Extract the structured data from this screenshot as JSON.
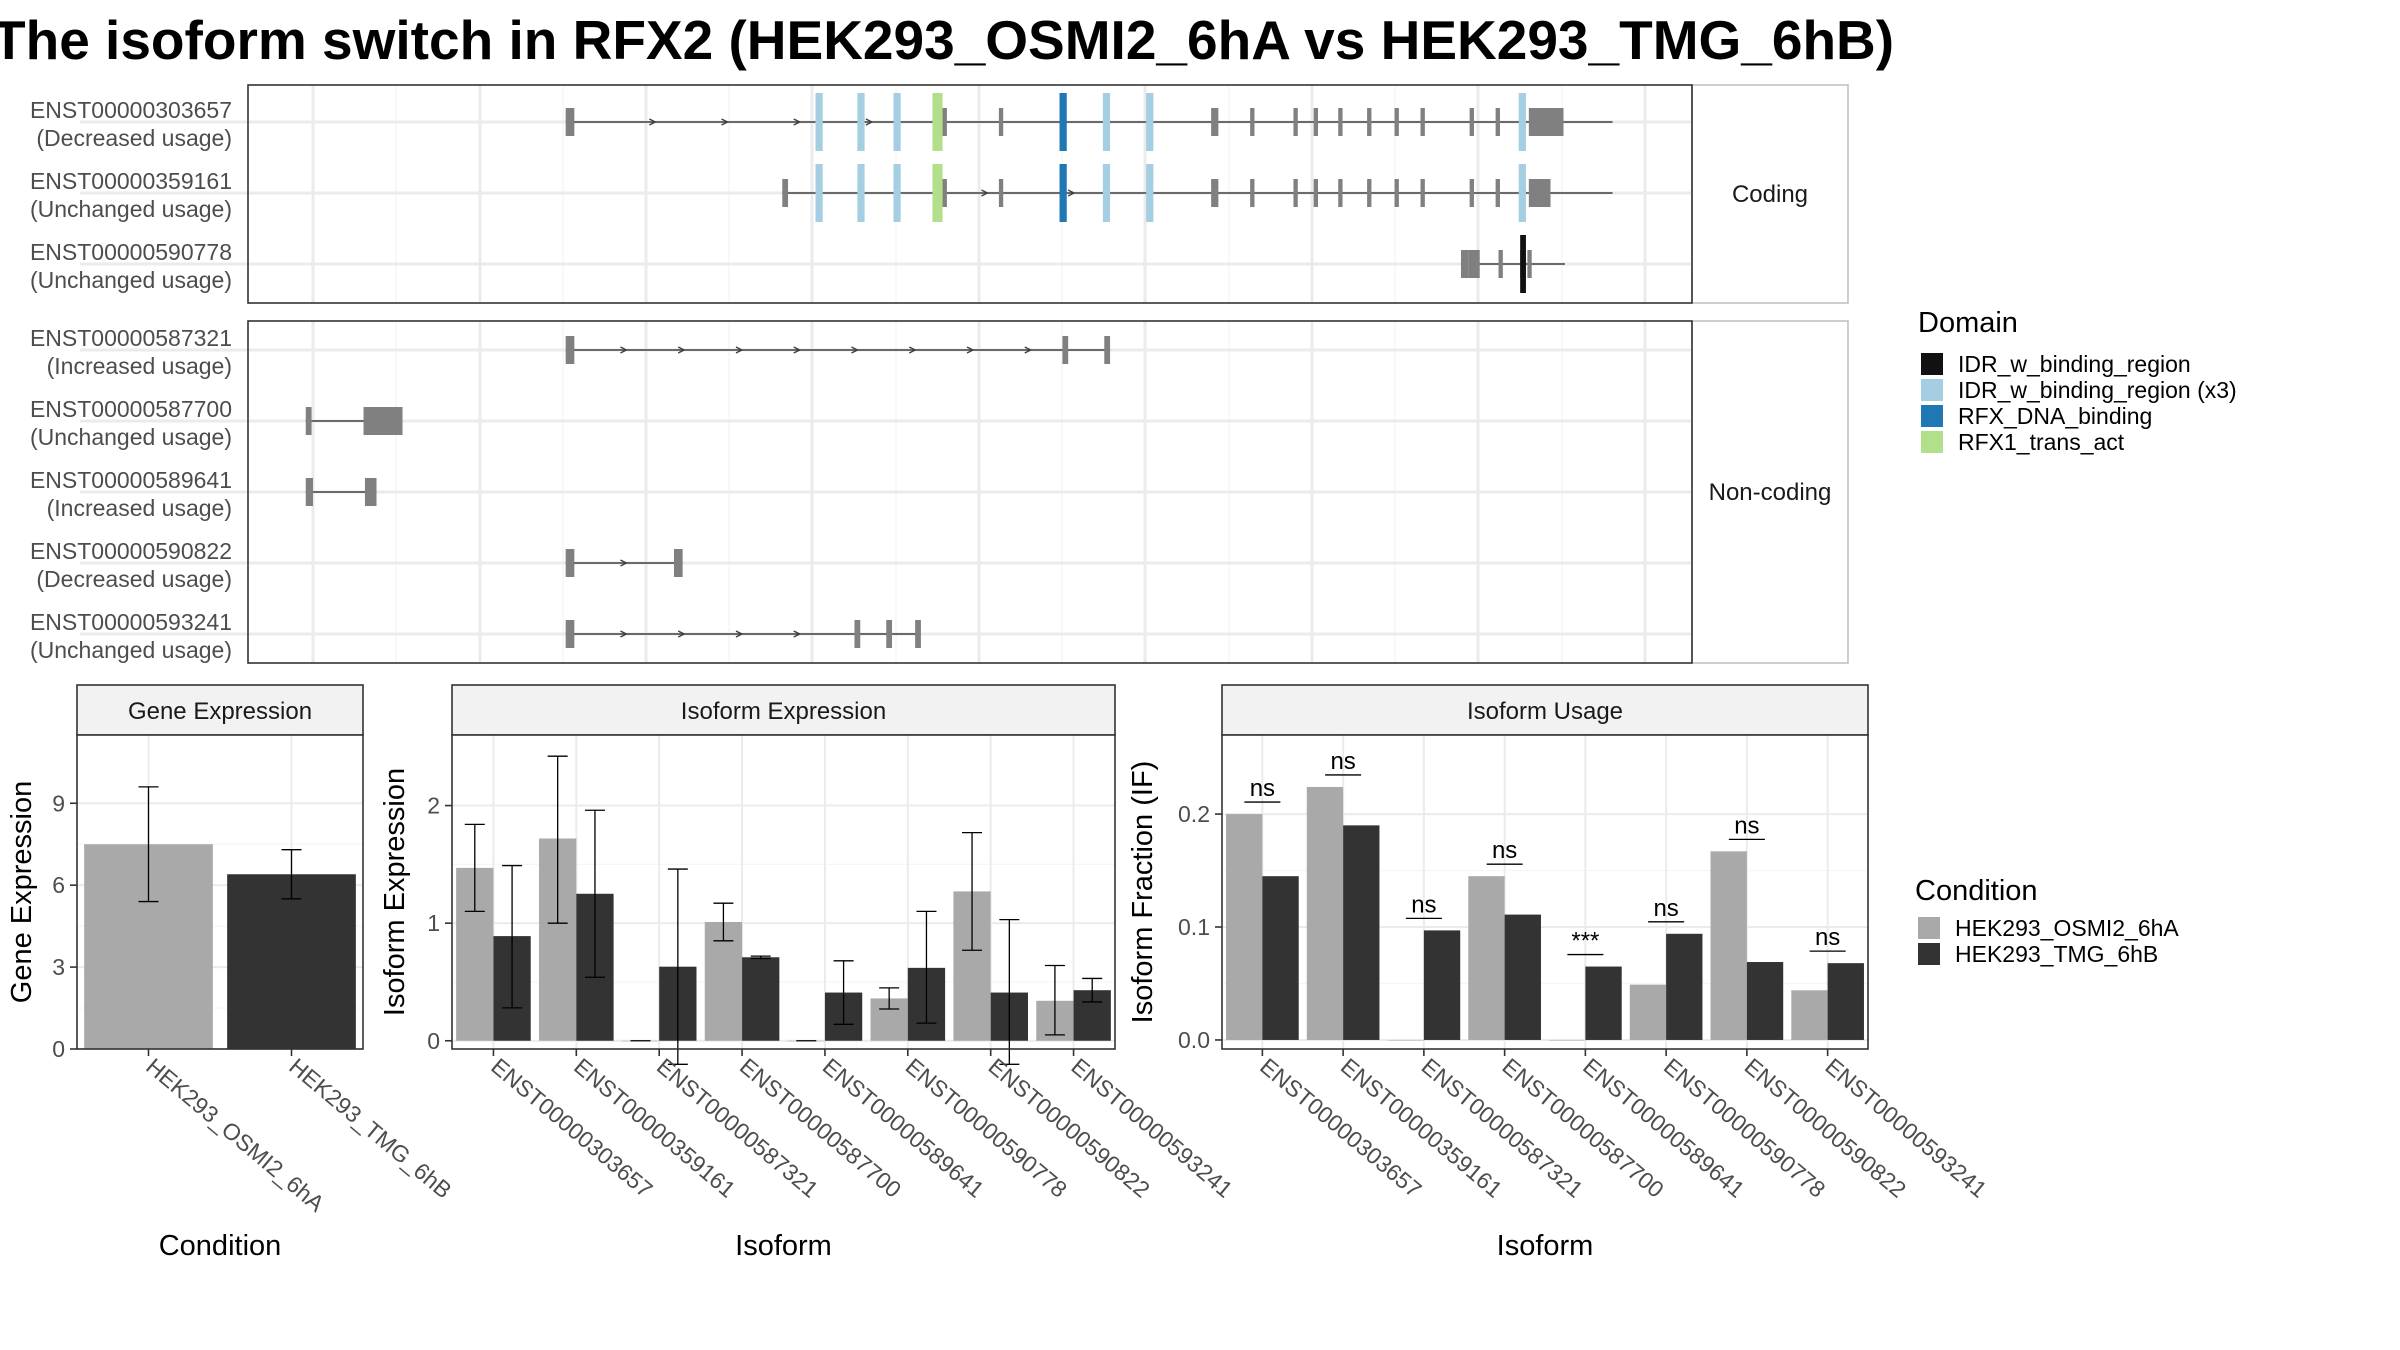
{
  "title": "The isoform switch in RFX2 (HEK293_OSMI2_6hA vs HEK293_TMG_6hB)",
  "colors": {
    "exon": "#808080",
    "intron": "#404040",
    "strip_bg": "#f2f2f2",
    "grid": "#ebebeb",
    "cond_a": "#a9a9a9",
    "cond_b": "#333333"
  },
  "chart_data": [
    {
      "type": "gene-structure",
      "facets": [
        "Coding",
        "Non-coding"
      ],
      "x_range": [
        0,
        100
      ],
      "domain_legend": {
        "title": "Domain",
        "items": [
          {
            "label": "IDR_w_binding_region",
            "color": "#111111"
          },
          {
            "label": "IDR_w_binding_region (x3)",
            "color": "#a6cee3"
          },
          {
            "label": "RFX_DNA_binding",
            "color": "#1f78b4"
          },
          {
            "label": "RFX1_trans_act",
            "color": "#b2df8a"
          }
        ]
      },
      "isoforms": [
        {
          "id": "ENST00000303657",
          "usage": "(Decreased usage)",
          "facet": "Coding",
          "start": 22.0,
          "end": 94.5,
          "arrows": [
            28,
            33,
            38,
            43
          ],
          "exons": [
            [
              22.0,
              22.6,
              "thin"
            ],
            [
              39.4,
              39.7,
              "thick"
            ],
            [
              42.3,
              42.6,
              "thick"
            ],
            [
              44.8,
              45.1,
              "thick"
            ],
            [
              47.6,
              48.4,
              "thick"
            ],
            [
              52.0,
              52.3,
              "thick"
            ],
            [
              62.3,
              62.6,
              "thick"
            ],
            [
              66.7,
              67.2,
              "thick"
            ],
            [
              69.4,
              69.7,
              "thick"
            ],
            [
              72.4,
              72.7,
              "thick"
            ],
            [
              73.8,
              74.1,
              "thick"
            ],
            [
              75.5,
              75.8,
              "thick"
            ],
            [
              77.5,
              77.8,
              "thick"
            ],
            [
              79.4,
              79.7,
              "thick"
            ],
            [
              81.2,
              81.5,
              "thick"
            ],
            [
              84.6,
              84.9,
              "thick"
            ],
            [
              86.4,
              86.7,
              "thick"
            ],
            [
              88.1,
              88.4,
              "thick"
            ],
            [
              88.7,
              91.1,
              "utr"
            ]
          ],
          "domains": [
            [
              39.3,
              39.8,
              "#a6cee3"
            ],
            [
              42.2,
              42.7,
              "#a6cee3"
            ],
            [
              44.7,
              45.2,
              "#a6cee3"
            ],
            [
              47.4,
              48.1,
              "#b2df8a"
            ],
            [
              56.2,
              56.7,
              "#1f78b4"
            ],
            [
              59.2,
              59.7,
              "#a6cee3"
            ],
            [
              62.2,
              62.7,
              "#a6cee3"
            ],
            [
              88.0,
              88.5,
              "#a6cee3"
            ]
          ]
        },
        {
          "id": "ENST00000359161",
          "usage": "(Unchanged usage)",
          "facet": "Coding",
          "start": 37.0,
          "end": 94.5,
          "arrows": [
            51,
            57
          ],
          "exons": [
            [
              37.0,
              37.4,
              "thin"
            ],
            [
              39.4,
              39.7,
              "thick"
            ],
            [
              42.3,
              42.6,
              "thick"
            ],
            [
              44.8,
              45.1,
              "thick"
            ],
            [
              47.6,
              48.4,
              "thick"
            ],
            [
              52.0,
              52.3,
              "thick"
            ],
            [
              62.3,
              62.6,
              "thick"
            ],
            [
              66.7,
              67.2,
              "thick"
            ],
            [
              69.4,
              69.7,
              "thick"
            ],
            [
              72.4,
              72.7,
              "thick"
            ],
            [
              73.8,
              74.1,
              "thick"
            ],
            [
              75.5,
              75.8,
              "thick"
            ],
            [
              77.5,
              77.8,
              "thick"
            ],
            [
              79.4,
              79.7,
              "thick"
            ],
            [
              81.2,
              81.5,
              "thick"
            ],
            [
              84.6,
              84.9,
              "thick"
            ],
            [
              86.4,
              86.7,
              "thick"
            ],
            [
              88.1,
              88.4,
              "thick"
            ],
            [
              88.7,
              90.2,
              "utr"
            ]
          ],
          "domains": [
            [
              39.3,
              39.8,
              "#a6cee3"
            ],
            [
              42.2,
              42.7,
              "#a6cee3"
            ],
            [
              44.7,
              45.2,
              "#a6cee3"
            ],
            [
              47.4,
              48.1,
              "#b2df8a"
            ],
            [
              56.2,
              56.7,
              "#1f78b4"
            ],
            [
              59.2,
              59.7,
              "#a6cee3"
            ],
            [
              62.2,
              62.7,
              "#a6cee3"
            ],
            [
              88.0,
              88.5,
              "#a6cee3"
            ]
          ]
        },
        {
          "id": "ENST00000590778",
          "usage": "(Unchanged usage)",
          "facet": "Coding",
          "start": 84.0,
          "end": 91.2,
          "arrows": [],
          "exons": [
            [
              84.0,
              84.5,
              "thin"
            ],
            [
              84.5,
              85.3,
              "thick"
            ],
            [
              86.6,
              86.9,
              "thick"
            ],
            [
              88.1,
              88.5,
              "thick"
            ],
            [
              88.6,
              88.9,
              "thick"
            ]
          ],
          "domains": [
            [
              88.1,
              88.5,
              "#111111"
            ]
          ]
        },
        {
          "id": "ENST00000587321",
          "usage": "(Increased usage)",
          "facet": "Non-coding",
          "start": 22.0,
          "end": 59.7,
          "arrows": [
            26,
            30,
            34,
            38,
            42,
            46,
            50,
            54
          ],
          "exons": [
            [
              22.0,
              22.6,
              "thick"
            ],
            [
              56.4,
              56.8,
              "thick"
            ],
            [
              59.3,
              59.7,
              "thick"
            ]
          ],
          "domains": []
        },
        {
          "id": "ENST00000587700",
          "usage": "(Unchanged usage)",
          "facet": "Non-coding",
          "start": 4.0,
          "end": 10.7,
          "arrows": [],
          "exons": [
            [
              4.0,
              4.4,
              "thick"
            ],
            [
              8.0,
              10.7,
              "thick"
            ]
          ],
          "domains": []
        },
        {
          "id": "ENST00000589641",
          "usage": "(Increased usage)",
          "facet": "Non-coding",
          "start": 4.0,
          "end": 8.9,
          "arrows": [],
          "exons": [
            [
              4.0,
              4.5,
              "thick"
            ],
            [
              8.1,
              8.9,
              "thick"
            ]
          ],
          "domains": []
        },
        {
          "id": "ENST00000590822",
          "usage": "(Decreased usage)",
          "facet": "Non-coding",
          "start": 22.0,
          "end": 30.1,
          "arrows": [
            26
          ],
          "exons": [
            [
              22.0,
              22.6,
              "thick"
            ],
            [
              29.5,
              30.1,
              "thick"
            ]
          ],
          "domains": []
        },
        {
          "id": "ENST00000593241",
          "usage": "(Unchanged usage)",
          "facet": "Non-coding",
          "start": 22.0,
          "end": 46.6,
          "arrows": [
            26,
            30,
            34,
            38
          ],
          "exons": [
            [
              22.0,
              22.6,
              "thick"
            ],
            [
              42.0,
              42.4,
              "thick"
            ],
            [
              44.2,
              44.6,
              "thick"
            ],
            [
              46.2,
              46.6,
              "thick"
            ]
          ],
          "domains": []
        }
      ]
    },
    {
      "type": "bar",
      "strip": "Gene Expression",
      "xlabel": "Condition",
      "ylabel": "Gene Expression",
      "ylim": [
        0,
        11.5
      ],
      "yticks": [
        "0",
        "3",
        "6",
        "9"
      ],
      "categories": [
        "HEK293_OSMI2_6hA",
        "HEK293_TMG_6hB"
      ],
      "values": [
        7.5,
        6.4
      ],
      "errors": [
        [
          5.4,
          9.6
        ],
        [
          5.5,
          7.3
        ]
      ]
    },
    {
      "type": "bar",
      "strip": "Isoform Expression",
      "xlabel": "Isoform",
      "ylabel": "Isoform Expression",
      "ylim": [
        -0.07,
        2.6
      ],
      "yticks": [
        "0",
        "1",
        "2"
      ],
      "categories": [
        "ENST00000303657",
        "ENST00000359161",
        "ENST00000587321",
        "ENST00000587700",
        "ENST00000589641",
        "ENST00000590778",
        "ENST00000590822",
        "ENST00000593241"
      ],
      "series": [
        {
          "name": "HEK293_OSMI2_6hA",
          "values": [
            1.47,
            1.72,
            0,
            1.01,
            0,
            0.36,
            1.27,
            0.34
          ],
          "errors": [
            [
              1.1,
              1.84
            ],
            [
              1.0,
              2.42
            ],
            [
              0,
              0
            ],
            [
              0.85,
              1.17
            ],
            [
              0,
              0
            ],
            [
              0.27,
              0.45
            ],
            [
              0.77,
              1.77
            ],
            [
              0.05,
              0.64
            ]
          ]
        },
        {
          "name": "HEK293_TMG_6hB",
          "values": [
            0.89,
            1.25,
            0.63,
            0.71,
            0.41,
            0.62,
            0.41,
            0.43
          ],
          "errors": [
            [
              0.28,
              1.49
            ],
            [
              0.54,
              1.96
            ],
            [
              -0.2,
              1.46
            ],
            [
              0.7,
              0.72
            ],
            [
              0.14,
              0.68
            ],
            [
              0.15,
              1.1
            ],
            [
              -0.2,
              1.03
            ],
            [
              0.33,
              0.53
            ]
          ]
        }
      ]
    },
    {
      "type": "bar",
      "strip": "Isoform Usage",
      "xlabel": "Isoform",
      "ylabel": "Isoform Fraction (IF)",
      "ylim": [
        -0.008,
        0.27
      ],
      "yticks": [
        "0.0",
        "0.1",
        "0.2"
      ],
      "categories": [
        "ENST00000303657",
        "ENST00000359161",
        "ENST00000587321",
        "ENST00000587700",
        "ENST00000589641",
        "ENST00000590778",
        "ENST00000590822",
        "ENST00000593241"
      ],
      "series": [
        {
          "name": "HEK293_OSMI2_6hA",
          "values": [
            0.2,
            0.224,
            0,
            0.145,
            0,
            0.049,
            0.167,
            0.044
          ]
        },
        {
          "name": "HEK293_TMG_6hB",
          "values": [
            0.145,
            0.19,
            0.097,
            0.111,
            0.065,
            0.094,
            0.069,
            0.068
          ]
        }
      ],
      "significance": [
        "ns",
        "ns",
        "ns",
        "ns",
        "***",
        "ns",
        "ns",
        "ns"
      ]
    }
  ],
  "condition_legend": {
    "title": "Condition",
    "items": [
      {
        "label": "HEK293_OSMI2_6hA",
        "color": "#a9a9a9"
      },
      {
        "label": "HEK293_TMG_6hB",
        "color": "#333333"
      }
    ]
  }
}
